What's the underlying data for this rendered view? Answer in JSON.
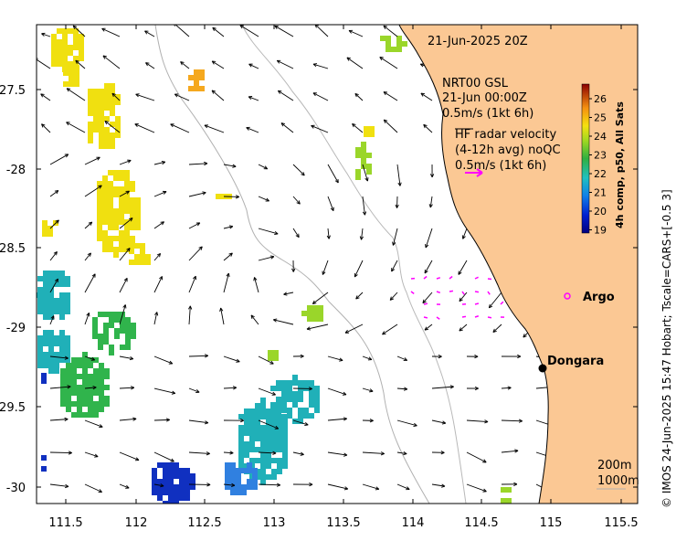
{
  "timestamp": "21-Jun-2025 20Z",
  "model": {
    "name": "NRT00 GSL",
    "time": "21-Jun 00:00Z",
    "scale_label": "0.5m/s (1kt 6h)"
  },
  "radar": {
    "line1": "HF radar velocity",
    "line2": "(4-12h avg) noQC",
    "scale_label": "0.5m/s (1kt 6h)"
  },
  "places": [
    {
      "name": "Argo",
      "lon": 115.04,
      "lat": -28.86
    },
    {
      "name": "Dongara",
      "lon": 114.92,
      "lat": -29.26
    }
  ],
  "isobaths": [
    "200m",
    "1000m"
  ],
  "colorbar": {
    "label": "4h comp, p50, All Sats",
    "ticks": [
      "26",
      "25",
      "24",
      "23",
      "22",
      "21",
      "20",
      "19"
    ]
  },
  "credit": "© IMOS 24-Jun-2025 15:47 Hobart; Tscale=CARS+[-0.5 3]",
  "axes": {
    "x_ticks": [
      "111.5",
      "112",
      "112.5",
      "113",
      "113.5",
      "114",
      "114.5",
      "115",
      "115.5"
    ],
    "y_ticks": [
      "-27.5",
      "-28",
      "-28.5",
      "-29",
      "-29.5",
      "-30"
    ]
  },
  "colors": {
    "land": "#fbc894",
    "radar_vector": "#ff00ff",
    "sst_24": "#f0e010",
    "sst_25": "#f5a81e",
    "sst_23": "#9ad62a",
    "sst_22": "#30b44c",
    "sst_21": "#20b0b8",
    "sst_20": "#3080e0",
    "sst_19": "#1030c0"
  }
}
